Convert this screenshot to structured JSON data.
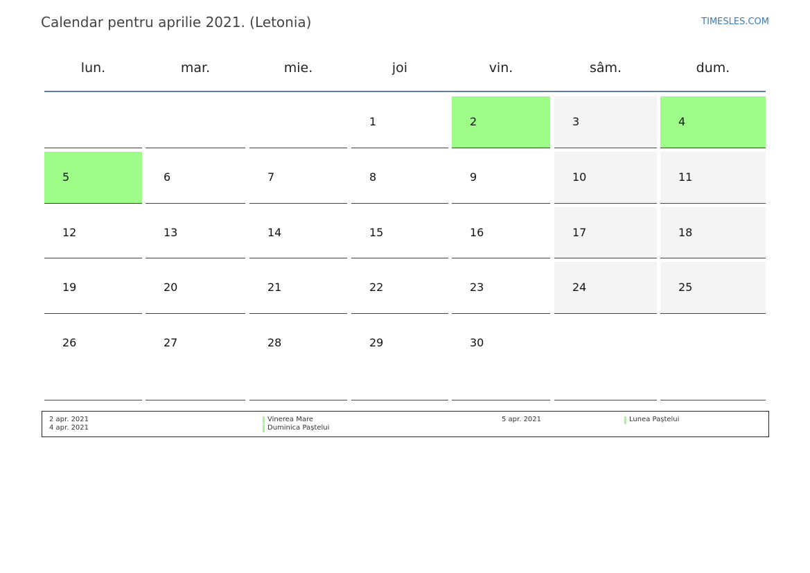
{
  "header": {
    "title": "Calendar pentru aprilie 2021. (Letonia)",
    "site": "TIMESLES.COM"
  },
  "weekdays": [
    "lun.",
    "mar.",
    "mie.",
    "joi",
    "vin.",
    "sâm.",
    "dum."
  ],
  "weeks": [
    [
      null,
      null,
      null,
      1,
      2,
      3,
      4
    ],
    [
      5,
      6,
      7,
      8,
      9,
      10,
      11
    ],
    [
      12,
      13,
      14,
      15,
      16,
      17,
      18
    ],
    [
      19,
      20,
      21,
      22,
      23,
      24,
      25
    ],
    [
      26,
      27,
      28,
      29,
      30,
      null,
      null
    ]
  ],
  "holiday_color": "#9efc88",
  "holidays": [
    {
      "date": "2 apr. 2021",
      "name": "Vinerea Mare"
    },
    {
      "date": "4 apr. 2021",
      "name": "Duminica Paștelui"
    },
    {
      "date": "5 apr. 2021",
      "name": "Lunea Paștelui"
    }
  ]
}
